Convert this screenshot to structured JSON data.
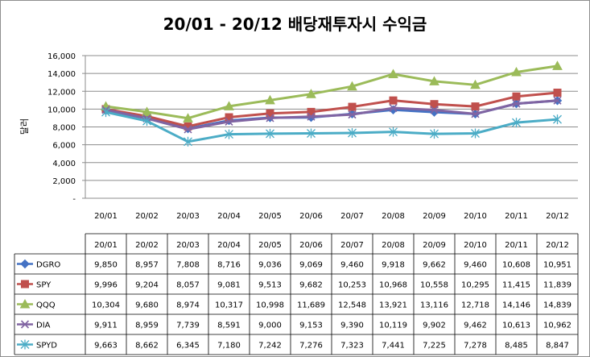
{
  "chart_data": {
    "type": "line",
    "title": "20/01 - 20/12 배당재투자시 수익금",
    "ylabel": "달러",
    "xlabel": "",
    "ylim": [
      0,
      16000
    ],
    "y_ticks": [
      "16,000",
      "14,000",
      "12,000",
      "10,000",
      "8,000",
      "6,000",
      "4,000",
      "2,000",
      "-"
    ],
    "categories": [
      "20/01",
      "20/02",
      "20/03",
      "20/04",
      "20/05",
      "20/06",
      "20/07",
      "20/08",
      "20/09",
      "20/10",
      "20/11",
      "20/12"
    ],
    "grid": true,
    "legend": "table-bottom",
    "series": [
      {
        "name": "DGRO",
        "color": "#4472c4",
        "marker": "diamond",
        "values": [
          9850,
          8957,
          7808,
          8716,
          9036,
          9069,
          9460,
          9918,
          9662,
          9460,
          10608,
          10951
        ],
        "labels": [
          "9,850",
          "8,957",
          "7,808",
          "8,716",
          "9,036",
          "9,069",
          "9,460",
          "9,918",
          "9,662",
          "9,460",
          "10,608",
          "10,951"
        ]
      },
      {
        "name": "SPY",
        "color": "#c0504d",
        "marker": "square",
        "values": [
          9996,
          9204,
          8057,
          9081,
          9513,
          9682,
          10253,
          10968,
          10558,
          10295,
          11415,
          11839
        ],
        "labels": [
          "9,996",
          "9,204",
          "8,057",
          "9,081",
          "9,513",
          "9,682",
          "10,253",
          "10,968",
          "10,558",
          "10,295",
          "11,415",
          "11,839"
        ]
      },
      {
        "name": "QQQ",
        "color": "#9bbb59",
        "marker": "triangle",
        "values": [
          10304,
          9680,
          8974,
          10317,
          10998,
          11689,
          12548,
          13921,
          13116,
          12718,
          14146,
          14839
        ],
        "labels": [
          "10,304",
          "9,680",
          "8,974",
          "10,317",
          "10,998",
          "11,689",
          "12,548",
          "13,921",
          "13,116",
          "12,718",
          "14,146",
          "14,839"
        ]
      },
      {
        "name": "DIA",
        "color": "#8064a2",
        "marker": "x",
        "values": [
          9911,
          8959,
          7739,
          8591,
          9000,
          9153,
          9390,
          10119,
          9902,
          9462,
          10613,
          10962
        ],
        "labels": [
          "9,911",
          "8,959",
          "7,739",
          "8,591",
          "9,000",
          "9,153",
          "9,390",
          "10,119",
          "9,902",
          "9,462",
          "10,613",
          "10,962"
        ]
      },
      {
        "name": "SPYD",
        "color": "#4bacc6",
        "marker": "star",
        "values": [
          9663,
          8662,
          6345,
          7180,
          7242,
          7276,
          7323,
          7441,
          7225,
          7278,
          8485,
          8847
        ],
        "labels": [
          "9,663",
          "8,662",
          "6,345",
          "7,180",
          "7,242",
          "7,276",
          "7,323",
          "7,441",
          "7,225",
          "7,278",
          "8,485",
          "8,847"
        ]
      }
    ]
  }
}
